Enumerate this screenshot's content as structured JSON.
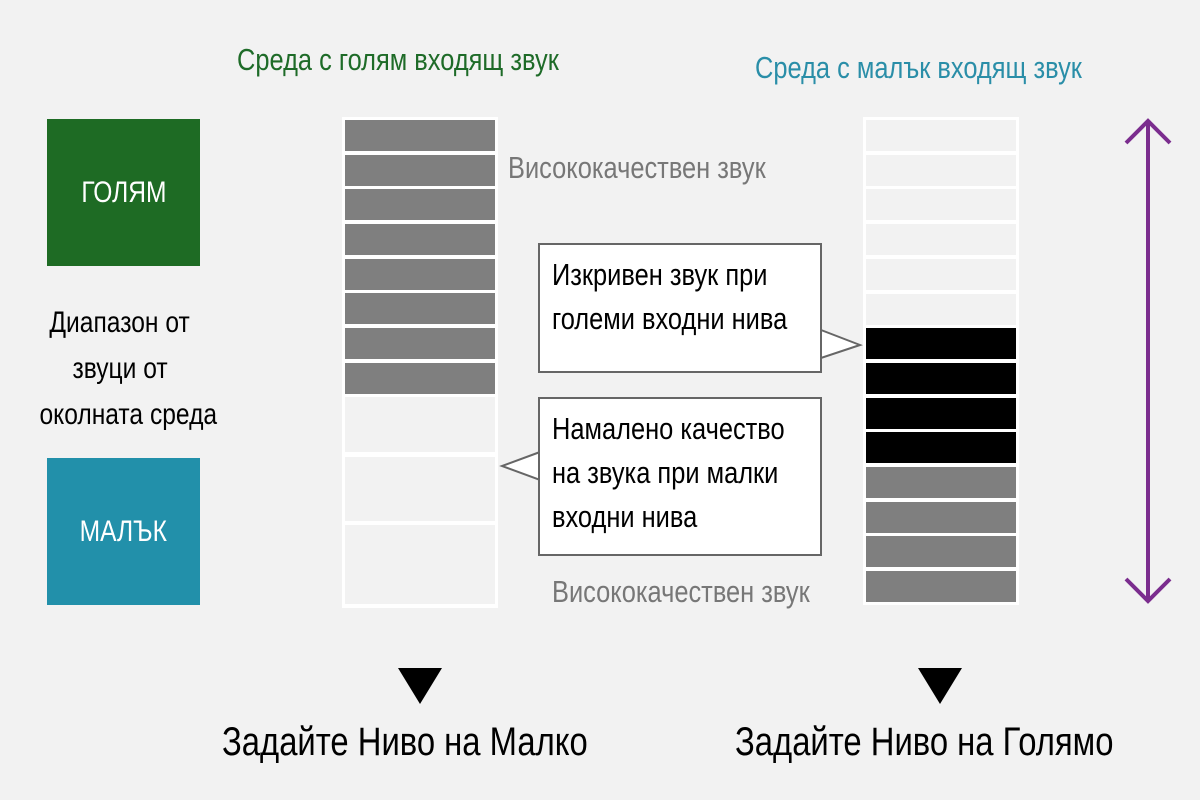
{
  "titles": {
    "left": "Среда с голям входящ звук",
    "right": "Среда с малък входящ звук"
  },
  "colors": {
    "left_title": "#1e6b28",
    "right_title": "#2a8ea8",
    "large_box": "#1e6b24",
    "small_box": "#2290aa",
    "arrow": "#7b2d8e",
    "bar_gray": "#7f7f7f",
    "bar_black": "#000000"
  },
  "legend": {
    "large": "ГОЛЯМ",
    "small": "МАЛЪК",
    "range_lines": [
      "Диапазон от",
      "звуци от",
      "околната среда"
    ]
  },
  "left_column": {
    "cells": [
      "gray",
      "gray",
      "gray",
      "gray",
      "gray",
      "gray",
      "gray",
      "gray",
      "empty",
      "empty",
      "empty"
    ],
    "label": "Висококачествен звук"
  },
  "right_column": {
    "cells": [
      "empty",
      "empty",
      "empty",
      "empty",
      "empty",
      "empty",
      "black",
      "black",
      "black",
      "black",
      "gray",
      "gray",
      "gray",
      "gray"
    ],
    "label": "Висококачествен звук"
  },
  "callouts": {
    "distorted": [
      "Изкривен звук при",
      "големи входни нива"
    ],
    "reduced": [
      "Намалено качество",
      "на звука при малки",
      "входни нива"
    ]
  },
  "actions": {
    "left": "Задайте Ниво на Малко",
    "right": "Задайте Ниво на Голямо"
  }
}
